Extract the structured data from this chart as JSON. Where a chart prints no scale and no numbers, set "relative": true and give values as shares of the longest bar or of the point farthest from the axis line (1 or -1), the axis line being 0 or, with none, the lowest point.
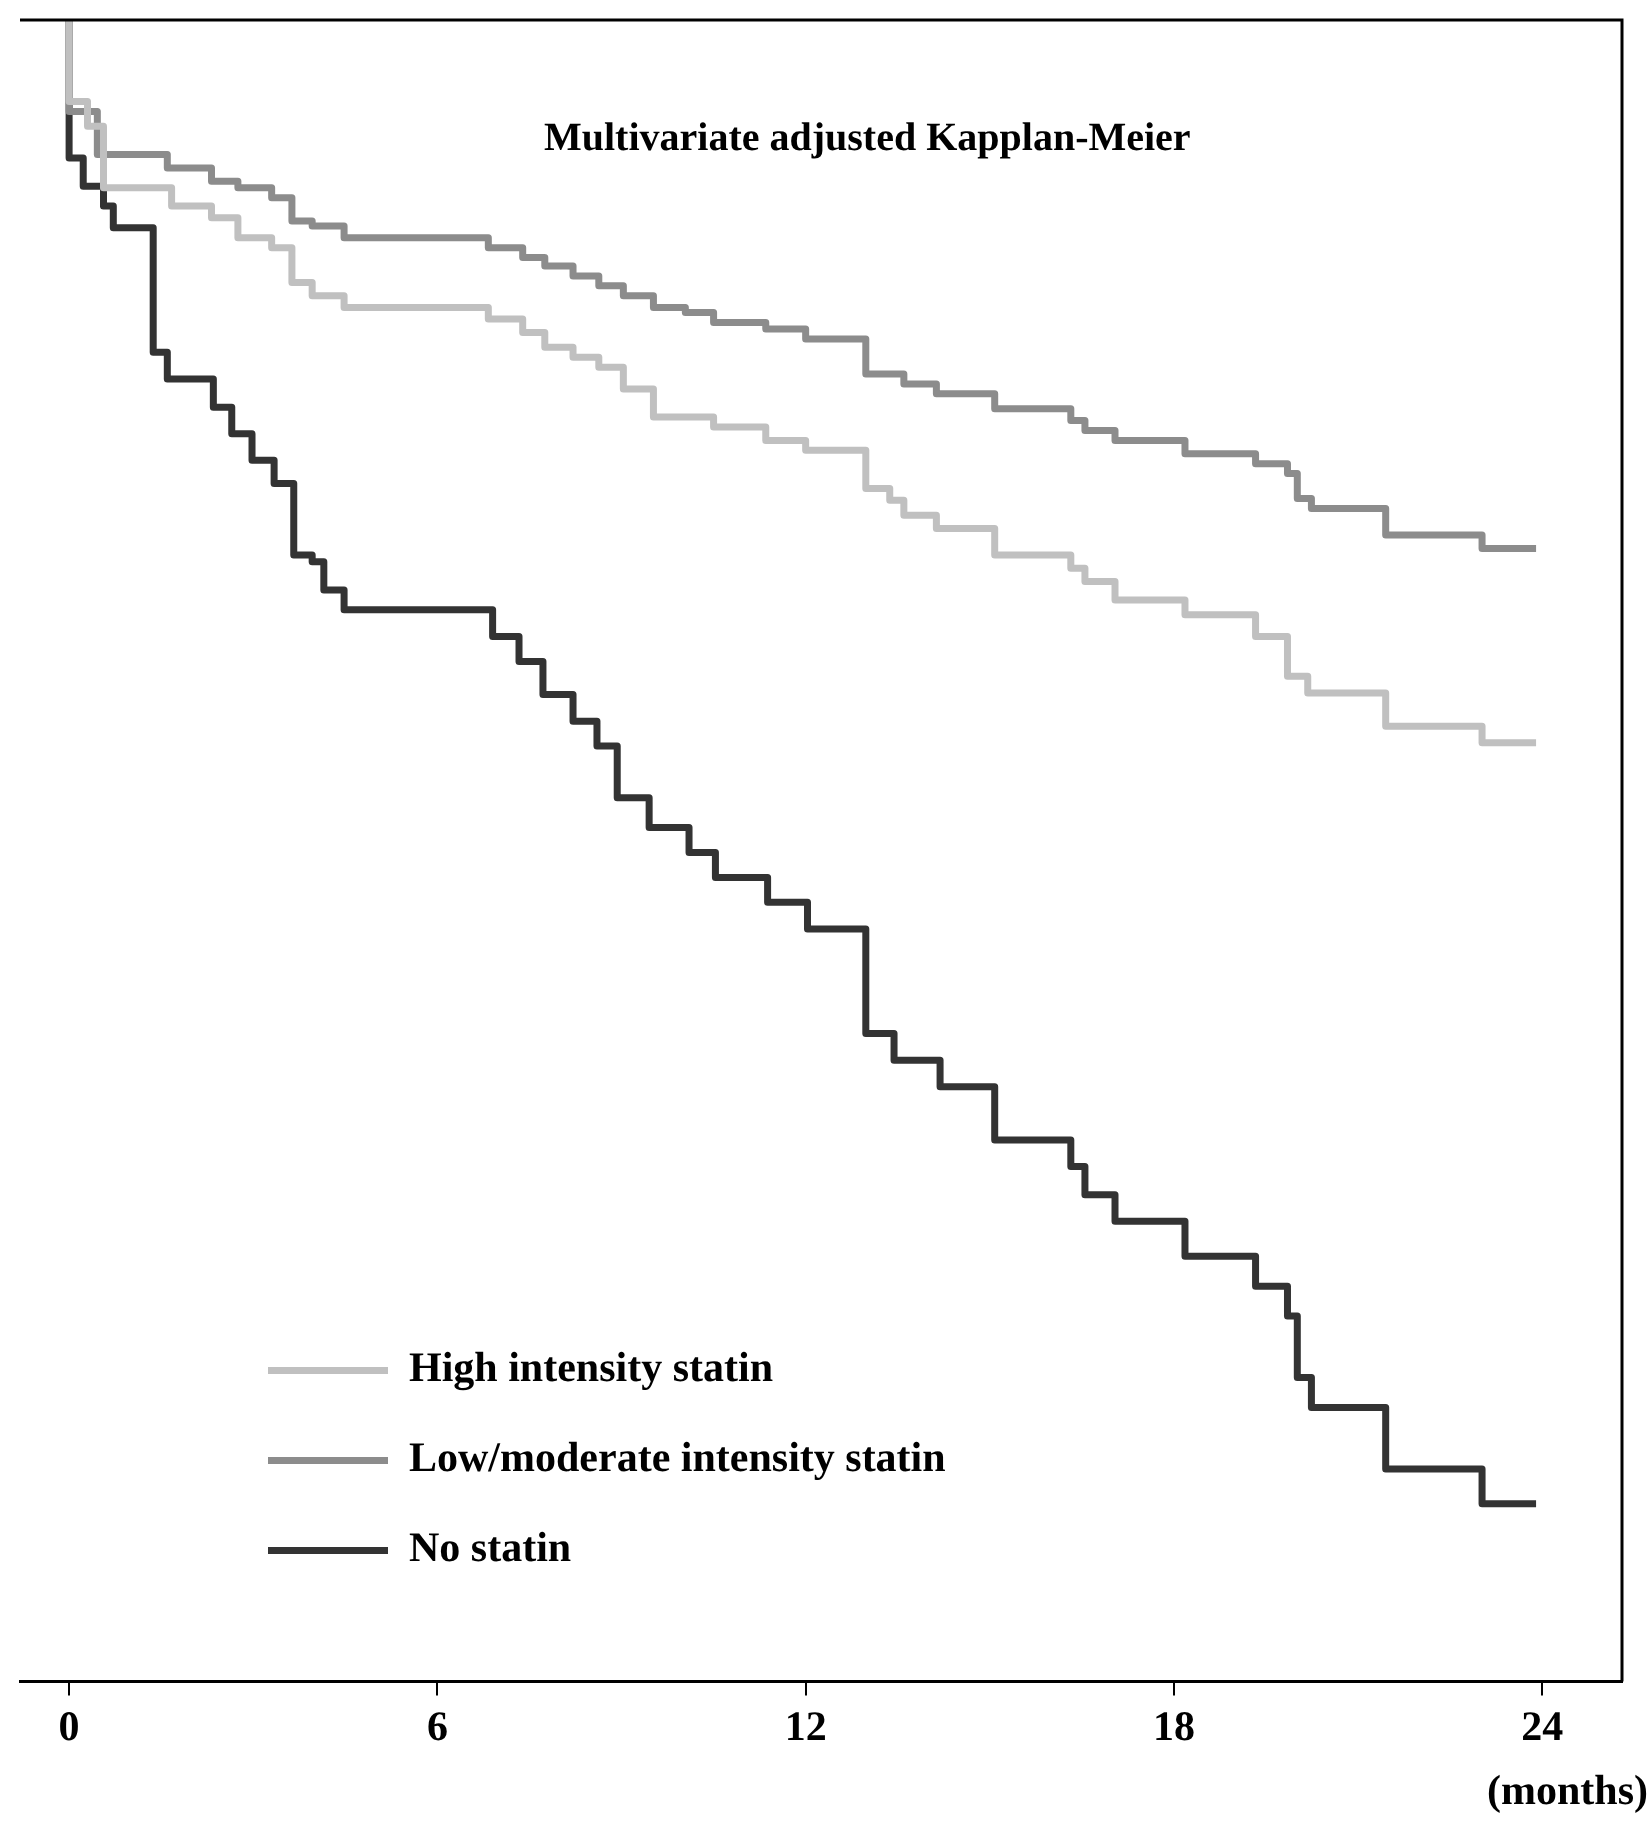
{
  "chart_data": {
    "type": "step",
    "title": "Multivariate adjusted Kapplan-Meier",
    "xlabel": "(months)",
    "relative": true,
    "xlim": [
      -0.8,
      25.3
    ],
    "xticks": [
      0,
      6,
      12,
      18,
      24
    ],
    "legend": "bottom left",
    "series": [
      {
        "name": "High intensity statin",
        "color": "#c0c0c0",
        "x": [
          0,
          0.3,
          0.56,
          1.67,
          2.32,
          2.75,
          3.3,
          3.63,
          3.96,
          4.48,
          6.83,
          7.39,
          7.75,
          8.21,
          8.63,
          9.03,
          9.52,
          10.5,
          11.35,
          12,
          12.98,
          13.37,
          13.6,
          14.13,
          15.08,
          16.32,
          16.55,
          17.04,
          18.18,
          19.33,
          19.85,
          20.18,
          21.45,
          23.02,
          23.9
        ],
        "values": [
          1,
          0.951,
          0.936,
          0.899,
          0.888,
          0.881,
          0.869,
          0.863,
          0.842,
          0.834,
          0.827,
          0.82,
          0.812,
          0.803,
          0.797,
          0.791,
          0.778,
          0.761,
          0.755,
          0.747,
          0.741,
          0.718,
          0.711,
          0.702,
          0.694,
          0.678,
          0.67,
          0.662,
          0.651,
          0.642,
          0.629,
          0.605,
          0.595,
          0.575,
          0.565
        ]
      },
      {
        "name": "Low/moderate intensity statin",
        "color": "#8c8c8c",
        "x": [
          0,
          0.46,
          1.6,
          2.32,
          2.75,
          3.3,
          3.63,
          3.96,
          4.48,
          6.83,
          7.39,
          7.75,
          8.21,
          8.63,
          9.03,
          9.52,
          10.04,
          10.5,
          11.35,
          12,
          12.98,
          13.6,
          14.13,
          15.08,
          16.32,
          16.55,
          17.04,
          18.18,
          19.33,
          19.85,
          20.01,
          20.24,
          21.45,
          23.02,
          23.9
        ],
        "values": [
          1,
          0.945,
          0.919,
          0.911,
          0.903,
          0.899,
          0.893,
          0.879,
          0.876,
          0.869,
          0.863,
          0.857,
          0.852,
          0.846,
          0.84,
          0.834,
          0.827,
          0.824,
          0.818,
          0.814,
          0.808,
          0.787,
          0.781,
          0.775,
          0.766,
          0.759,
          0.753,
          0.747,
          0.739,
          0.733,
          0.727,
          0.712,
          0.706,
          0.69,
          0.682
        ]
      },
      {
        "name": "No statin",
        "color": "#333333",
        "x": [
          0,
          0.23,
          0.56,
          0.72,
          1.37,
          1.6,
          2.35,
          2.65,
          2.98,
          3.34,
          3.66,
          3.96,
          4.15,
          4.48,
          6.9,
          7.33,
          7.72,
          8.21,
          8.6,
          8.93,
          9.45,
          10.1,
          10.53,
          11.38,
          12.03,
          12.98,
          13.44,
          14.19,
          15.08,
          16.32,
          16.55,
          17.04,
          18.18,
          19.33,
          19.85,
          20.01,
          20.24,
          21.45,
          23.02,
          23.9
        ],
        "values": [
          1,
          0.917,
          0.9,
          0.888,
          0.875,
          0.8,
          0.784,
          0.767,
          0.751,
          0.735,
          0.721,
          0.678,
          0.674,
          0.657,
          0.645,
          0.629,
          0.614,
          0.594,
          0.578,
          0.563,
          0.532,
          0.514,
          0.499,
          0.484,
          0.469,
          0.453,
          0.39,
          0.374,
          0.358,
          0.326,
          0.31,
          0.293,
          0.277,
          0.256,
          0.238,
          0.22,
          0.183,
          0.165,
          0.128,
          0.107
        ]
      }
    ]
  }
}
